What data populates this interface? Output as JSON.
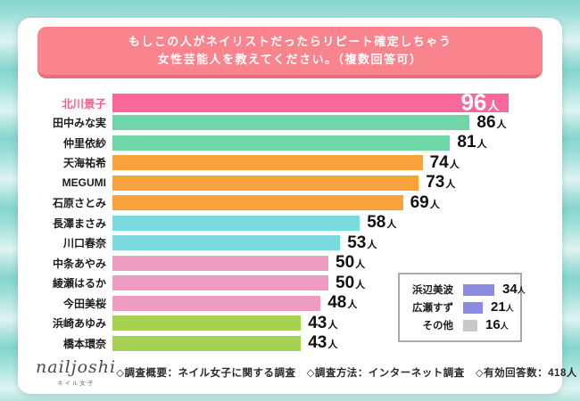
{
  "page": {
    "background_color": "#8fd9d2",
    "card_color": "#ffffff"
  },
  "header": {
    "line1": "もしこの人がネイリストだったらリピート確定しちゃう",
    "line2": "女性芸能人を教えてください。（複数回答可）",
    "bg_color": "#f9848e",
    "edge_color": "#e96f7e"
  },
  "chart_data": {
    "type": "bar",
    "orientation": "horizontal",
    "title": "もしこの人がネイリストだったらリピート確定しちゃう女性芸能人を教えてください。（複数回答可）",
    "unit": "人",
    "xlim": [
      0,
      96
    ],
    "bars": [
      {
        "label": "北川景子",
        "value": 96,
        "color": "#f9679b",
        "highlight": true
      },
      {
        "label": "田中みな実",
        "value": 86,
        "color": "#6fd6a8"
      },
      {
        "label": "仲里依紗",
        "value": 81,
        "color": "#6fd6a8"
      },
      {
        "label": "天海祐希",
        "value": 74,
        "color": "#faa33c"
      },
      {
        "label": "MEGUMI",
        "value": 73,
        "color": "#faa33c"
      },
      {
        "label": "石原さとみ",
        "value": 69,
        "color": "#faa33c"
      },
      {
        "label": "長澤まさみ",
        "value": 58,
        "color": "#7bd9df"
      },
      {
        "label": "川口春奈",
        "value": 53,
        "color": "#7bd9df"
      },
      {
        "label": "中条あやみ",
        "value": 50,
        "color": "#ef9cc3"
      },
      {
        "label": "綾瀬はるか",
        "value": 50,
        "color": "#ef9cc3"
      },
      {
        "label": "今田美桜",
        "value": 48,
        "color": "#ef9cc3"
      },
      {
        "label": "浜崎あゆみ",
        "value": 43,
        "color": "#a5d254"
      },
      {
        "label": "橋本環奈",
        "value": 43,
        "color": "#a5d254"
      }
    ],
    "inset_items": [
      {
        "label": "浜辺美波",
        "value": 34,
        "color": "#8b8be4"
      },
      {
        "label": "広瀬すず",
        "value": 21,
        "color": "#8b8be4"
      },
      {
        "label": "その他",
        "value": 16,
        "color": "#c8c8c8"
      }
    ],
    "legend_position": "inset-bottom-right",
    "grid": false
  },
  "footer": {
    "logo": "nailjoshi",
    "logo_sub": "ネイル女子",
    "notes": [
      "◇調査概要：ネイル女子に関する調査",
      "◇調査方法：インターネット調査",
      "◇有効回答数：418人"
    ]
  }
}
